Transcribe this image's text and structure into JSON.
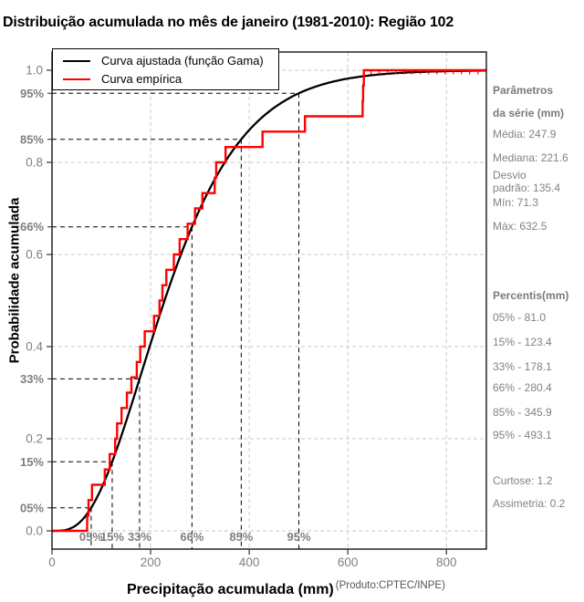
{
  "title": "Distribuição acumulada no mês de janeiro (1981-2010): Região 102",
  "legend": {
    "fitted": "Curva ajustada (função Gama)",
    "empirical": "Curva empírica"
  },
  "sidebar": {
    "params_header": "Parâmetros\nda série (mm)",
    "media": "Média: 247.9",
    "mediana": "Mediana: 221.6",
    "desvio": "Desvio\npadrão: 135.4",
    "min": "Mín: 71.3",
    "max": "Máx: 632.5",
    "percentis_header": "Percentis(mm)",
    "percentis": [
      "05% - 81.0",
      "15% - 123.4",
      "33% - 178.1",
      "66% - 280.4",
      "85% - 345.9",
      "95% - 493.1"
    ],
    "curtose": "Curtose: 1.2",
    "assimetria": "Assimetria: 0.2"
  },
  "chart_data": {
    "type": "line",
    "title": "Distribuição acumulada no mês de janeiro (1981-2010): Região 102",
    "xlabel": "Precipitação acumulada (mm)",
    "ylabel": "Probabilidade acumulada",
    "source_note": "(Produto:CPTEC/INPE)",
    "x_axis": {
      "ticks": [
        0,
        200,
        400,
        600,
        800
      ],
      "tick_labels": [
        "0",
        "200",
        "400",
        "600",
        "800"
      ],
      "range": [
        0,
        881
      ]
    },
    "y_axis": {
      "ticks": [
        0,
        0.2,
        0.4,
        0.6,
        0.8,
        1.0
      ],
      "tick_labels": [
        "0.0",
        "0.2",
        "0.4",
        "0.6",
        "0.8",
        "1.0"
      ],
      "range": [
        0,
        1
      ]
    },
    "percent_levels": [
      {
        "label": "05%",
        "p": 0.05
      },
      {
        "label": "15%",
        "p": 0.15
      },
      {
        "label": "33%",
        "p": 0.33
      },
      {
        "label": "66%",
        "p": 0.66
      },
      {
        "label": "85%",
        "p": 0.85
      },
      {
        "label": "95%",
        "p": 0.95
      }
    ],
    "grid": {
      "enabled": true,
      "color": "#c9c9c9"
    },
    "legend_position": "top-left",
    "series": [
      {
        "name": "Curva ajustada (função Gama)",
        "type": "gamma_cdf",
        "color": "#000000",
        "shape": 3.6,
        "scale": 69.75
      },
      {
        "name": "Curva empírica",
        "type": "ecdf",
        "color": "#ff0000",
        "values": [
          71.3,
          74,
          81,
          107,
          117,
          128,
          132,
          141,
          152,
          161,
          172,
          179,
          188,
          207,
          218,
          224,
          232,
          247,
          259,
          275,
          290,
          305,
          330,
          333,
          352,
          427,
          513,
          630,
          631,
          632.5
        ]
      }
    ],
    "stats": {
      "media": 247.9,
      "mediana": 221.6,
      "desvio_padrao": 135.4,
      "min": 71.3,
      "max": 632.5,
      "percentis": {
        "05": 81.0,
        "15": 123.4,
        "33": 178.1,
        "66": 280.4,
        "85": 345.9,
        "95": 493.1
      },
      "curtose": 1.2,
      "assimetria": 0.2
    },
    "colors": {
      "axis_text": "#7f7f7f",
      "connector": "#000000",
      "grid": "#c9c9c9"
    }
  }
}
